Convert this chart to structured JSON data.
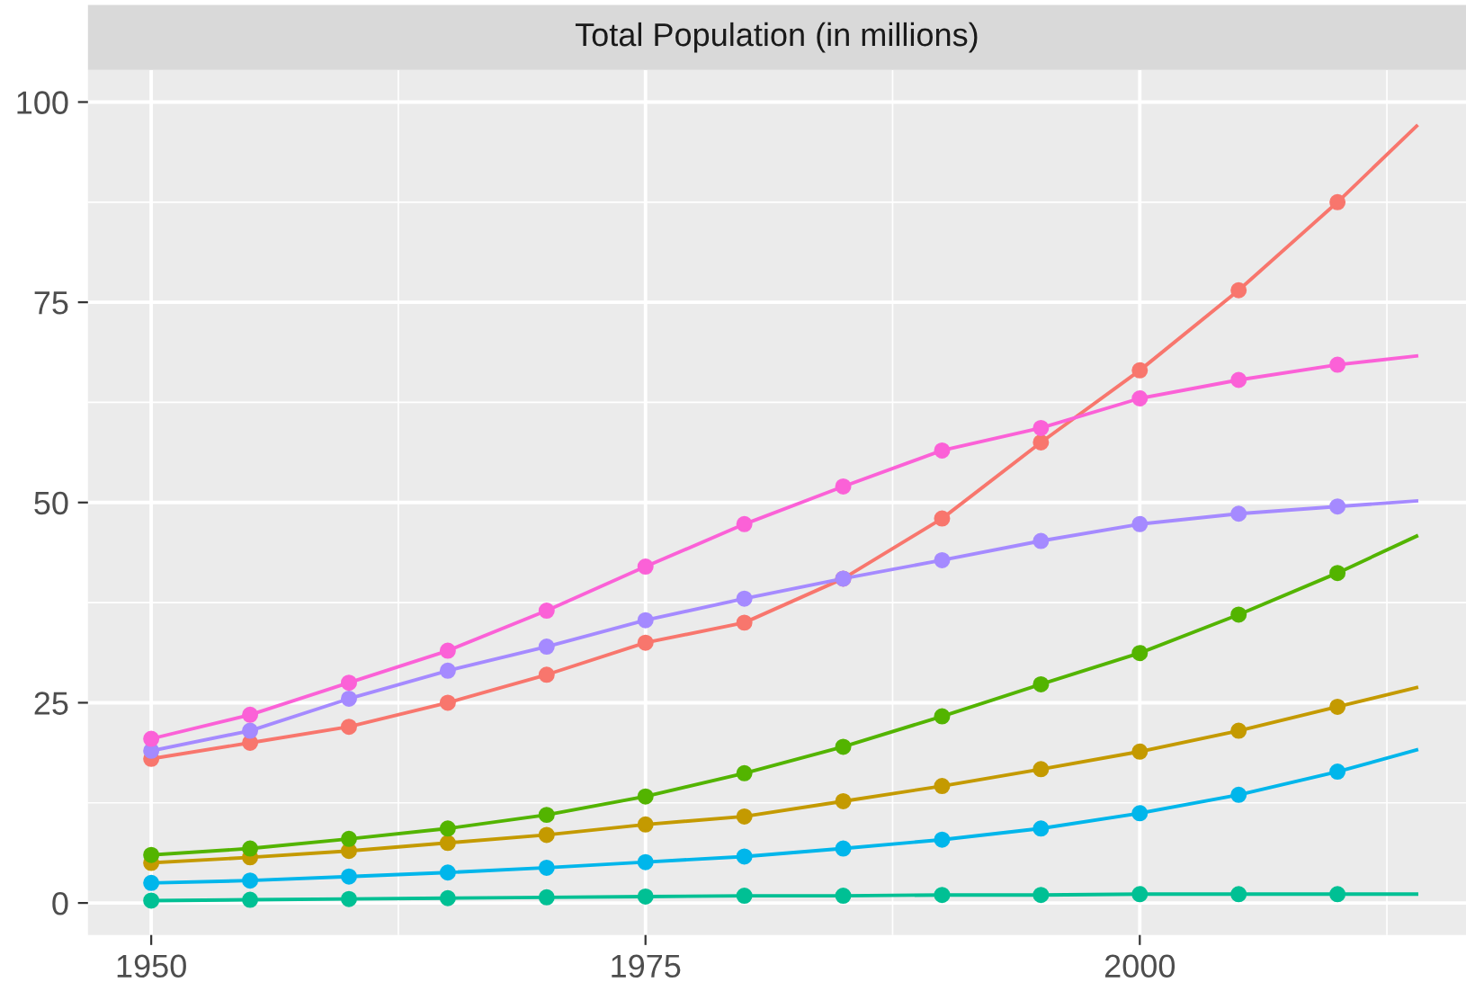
{
  "chart_data": {
    "type": "line",
    "title": "Total Population (in millions)",
    "xlim": [
      1946.8,
      2016.5
    ],
    "xticks": [
      1950,
      1975,
      2000
    ],
    "ylim": [
      -4,
      104
    ],
    "yticks": [
      0,
      25,
      50,
      75,
      100
    ],
    "grid": true,
    "marker": "circle",
    "line_style": "solid",
    "series": [
      {
        "color": "#f8766d",
        "x": [
          1950,
          1955,
          1960,
          1965,
          1970,
          1975,
          1980,
          1985,
          1990,
          1995,
          2000,
          2005,
          2010,
          2014
        ],
        "values": [
          18,
          20,
          22,
          25,
          28.5,
          32.5,
          35,
          40.5,
          48,
          57.5,
          66.5,
          76.5,
          87.5,
          97
        ]
      },
      {
        "color": "#c49a00",
        "x": [
          1950,
          1955,
          1960,
          1965,
          1970,
          1975,
          1980,
          1985,
          1990,
          1995,
          2000,
          2005,
          2010,
          2014
        ],
        "values": [
          5,
          5.7,
          6.5,
          7.5,
          8.5,
          9.8,
          10.8,
          12.7,
          14.6,
          16.7,
          18.9,
          21.5,
          24.5,
          26.9
        ]
      },
      {
        "color": "#53b400",
        "x": [
          1950,
          1955,
          1960,
          1965,
          1970,
          1975,
          1980,
          1985,
          1990,
          1995,
          2000,
          2005,
          2010,
          2014
        ],
        "values": [
          6,
          6.8,
          8,
          9.3,
          11,
          13.3,
          16.2,
          19.5,
          23.3,
          27.3,
          31.2,
          36,
          41.2,
          45.8
        ]
      },
      {
        "color": "#00c094",
        "x": [
          1950,
          1955,
          1960,
          1965,
          1970,
          1975,
          1980,
          1985,
          1990,
          1995,
          2000,
          2005,
          2010,
          2014
        ],
        "values": [
          0.3,
          0.4,
          0.5,
          0.6,
          0.7,
          0.8,
          0.9,
          0.9,
          1,
          1,
          1.1,
          1.1,
          1.1,
          1.1
        ]
      },
      {
        "color": "#00b6eb",
        "x": [
          1950,
          1955,
          1960,
          1965,
          1970,
          1975,
          1980,
          1985,
          1990,
          1995,
          2000,
          2005,
          2010,
          2014
        ],
        "values": [
          2.5,
          2.8,
          3.3,
          3.8,
          4.4,
          5.1,
          5.8,
          6.8,
          7.9,
          9.3,
          11.2,
          13.5,
          16.4,
          19.1
        ]
      },
      {
        "color": "#a58aff",
        "x": [
          1950,
          1955,
          1960,
          1965,
          1970,
          1975,
          1980,
          1985,
          1990,
          1995,
          2000,
          2005,
          2010,
          2014
        ],
        "values": [
          19,
          21.5,
          25.5,
          29,
          32,
          35.3,
          38,
          40.5,
          42.8,
          45.2,
          47.3,
          48.6,
          49.5,
          50.2
        ]
      },
      {
        "color": "#fb61d7",
        "x": [
          1950,
          1955,
          1960,
          1965,
          1970,
          1975,
          1980,
          1985,
          1990,
          1995,
          2000,
          2005,
          2010,
          2014
        ],
        "values": [
          20.5,
          23.5,
          27.5,
          31.5,
          36.5,
          42,
          47.3,
          52,
          56.5,
          59.3,
          63,
          65.3,
          67.2,
          68.3
        ]
      }
    ]
  }
}
